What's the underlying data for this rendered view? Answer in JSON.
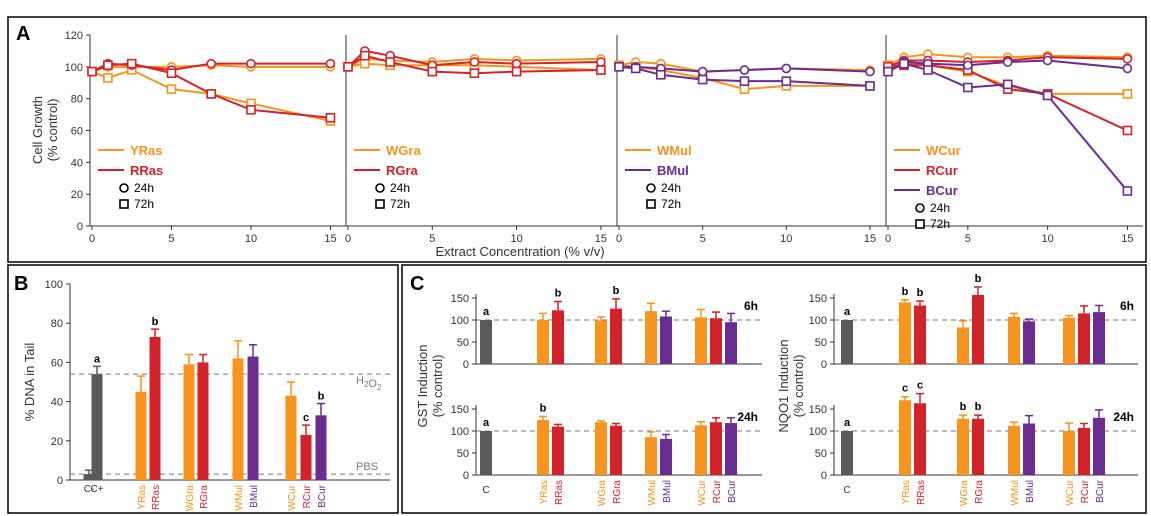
{
  "colors": {
    "orange": "#F7941D",
    "red": "#D2232A",
    "purple": "#6A2C91",
    "gray": "#5A5A5A",
    "axis": "#333333",
    "dash": "#777777"
  },
  "panel_labels": {
    "A": "A",
    "B": "B",
    "C": "C"
  },
  "chart_data": [
    {
      "id": "A",
      "type": "line",
      "ylabel": "Cell Growth\n(% control)",
      "xlabel": "Extract Concentration (% v/v)",
      "ylim": [
        0,
        120
      ],
      "xlim": [
        0,
        15.6
      ],
      "yticks": [
        0,
        20,
        40,
        60,
        80,
        100,
        120
      ],
      "xticks": [
        0,
        5,
        10,
        15
      ],
      "marker_legend": [
        {
          "marker": "circle",
          "label": "24h"
        },
        {
          "marker": "square",
          "label": "72h"
        }
      ],
      "subplots": [
        {
          "legend": [
            {
              "name": "YRas",
              "color": "orange"
            },
            {
              "name": "RRas",
              "color": "red"
            }
          ],
          "series": [
            {
              "name": "YRas",
              "color": "orange",
              "marker": "circle",
              "x": [
                0,
                1,
                2.5,
                5,
                7.5,
                10,
                15
              ],
              "y": [
                97,
                100,
                100,
                100,
                101,
                100,
                100
              ]
            },
            {
              "name": "YRas",
              "color": "orange",
              "marker": "square",
              "x": [
                0,
                1,
                2.5,
                5,
                7.5,
                10,
                15
              ],
              "y": [
                97,
                93,
                98,
                86,
                83,
                77,
                66
              ]
            },
            {
              "name": "RRas",
              "color": "red",
              "marker": "circle",
              "x": [
                0,
                1,
                2.5,
                5,
                7.5,
                10,
                15
              ],
              "y": [
                97,
                102,
                101,
                98,
                102,
                102,
                102
              ]
            },
            {
              "name": "RRas",
              "color": "red",
              "marker": "square",
              "x": [
                0,
                1,
                2.5,
                5,
                7.5,
                10,
                15
              ],
              "y": [
                97,
                101,
                102,
                96,
                83,
                73,
                68
              ]
            }
          ]
        },
        {
          "legend": [
            {
              "name": "WGra",
              "color": "orange"
            },
            {
              "name": "RGra",
              "color": "red"
            }
          ],
          "series": [
            {
              "name": "WGra",
              "color": "orange",
              "marker": "circle",
              "x": [
                0,
                1,
                2.5,
                5,
                7.5,
                10,
                15
              ],
              "y": [
                100,
                105,
                104,
                103,
                105,
                104,
                105
              ]
            },
            {
              "name": "WGra",
              "color": "orange",
              "marker": "square",
              "x": [
                0,
                1,
                2.5,
                5,
                7.5,
                10,
                15
              ],
              "y": [
                100,
                102,
                101,
                101,
                101,
                100,
                98
              ]
            },
            {
              "name": "RGra",
              "color": "red",
              "marker": "circle",
              "x": [
                0,
                1,
                2.5,
                5,
                7.5,
                10,
                15
              ],
              "y": [
                100,
                110,
                107,
                101,
                103,
                102,
                103
              ]
            },
            {
              "name": "RGra",
              "color": "red",
              "marker": "square",
              "x": [
                0,
                1,
                2.5,
                5,
                7.5,
                10,
                15
              ],
              "y": [
                100,
                107,
                103,
                97,
                96,
                97,
                98
              ]
            }
          ]
        },
        {
          "legend": [
            {
              "name": "WMul",
              "color": "orange"
            },
            {
              "name": "BMul",
              "color": "purple"
            }
          ],
          "series": [
            {
              "name": "WMul",
              "color": "orange",
              "marker": "circle",
              "x": [
                0,
                1,
                2.5,
                5,
                7.5,
                10,
                15
              ],
              "y": [
                101,
                103,
                102,
                97,
                98,
                99,
                98
              ]
            },
            {
              "name": "WMul",
              "color": "orange",
              "marker": "square",
              "x": [
                0,
                1,
                2.5,
                5,
                7.5,
                10,
                15
              ],
              "y": [
                101,
                100,
                98,
                93,
                86,
                88,
                88
              ]
            },
            {
              "name": "BMul",
              "color": "purple",
              "marker": "circle",
              "x": [
                0,
                1,
                2.5,
                5,
                7.5,
                10,
                15
              ],
              "y": [
                100,
                100,
                99,
                97,
                98,
                99,
                97
              ]
            },
            {
              "name": "BMul",
              "color": "purple",
              "marker": "square",
              "x": [
                0,
                1,
                2.5,
                5,
                7.5,
                10,
                15
              ],
              "y": [
                100,
                99,
                95,
                92,
                91,
                91,
                88
              ]
            }
          ]
        },
        {
          "legend": [
            {
              "name": "WCur",
              "color": "orange"
            },
            {
              "name": "RCur",
              "color": "red"
            },
            {
              "name": "BCur",
              "color": "purple"
            }
          ],
          "series": [
            {
              "name": "WCur",
              "color": "orange",
              "marker": "circle",
              "x": [
                0,
                1,
                2.5,
                5,
                7.5,
                10,
                15
              ],
              "y": [
                101,
                106,
                108,
                106,
                106,
                107,
                106
              ]
            },
            {
              "name": "WCur",
              "color": "orange",
              "marker": "square",
              "x": [
                0,
                1,
                2.5,
                5,
                7.5,
                10,
                15
              ],
              "y": [
                101,
                102,
                101,
                97,
                88,
                83,
                83
              ]
            },
            {
              "name": "RCur",
              "color": "red",
              "marker": "circle",
              "x": [
                0,
                1,
                2.5,
                5,
                7.5,
                10,
                15
              ],
              "y": [
                100,
                104,
                104,
                103,
                104,
                106,
                105
              ]
            },
            {
              "name": "RCur",
              "color": "red",
              "marker": "square",
              "x": [
                0,
                1,
                2.5,
                5,
                7.5,
                10,
                15
              ],
              "y": [
                100,
                101,
                101,
                98,
                86,
                83,
                60
              ]
            },
            {
              "name": "BCur",
              "color": "purple",
              "marker": "circle",
              "x": [
                0,
                1,
                2.5,
                5,
                7.5,
                10,
                15
              ],
              "y": [
                97,
                103,
                102,
                101,
                103,
                104,
                99
              ]
            },
            {
              "name": "BCur",
              "color": "purple",
              "marker": "square",
              "x": [
                0,
                1,
                2.5,
                5,
                7.5,
                10,
                15
              ],
              "y": [
                97,
                102,
                98,
                87,
                89,
                82,
                22
              ]
            }
          ]
        }
      ]
    },
    {
      "id": "B",
      "type": "bar",
      "ylabel": "% DNA in Tail",
      "ylim": [
        0,
        100
      ],
      "yticks": [
        0,
        20,
        40,
        60,
        80,
        100
      ],
      "reference_lines": [
        {
          "label": "H₂O₂",
          "value": 54
        },
        {
          "label": "PBS",
          "value": 3
        }
      ],
      "bars": [
        {
          "label": "C-",
          "value": 3,
          "error": 2,
          "color": "gray",
          "letter": ""
        },
        {
          "label": "C+",
          "value": 54,
          "error": 4,
          "color": "gray",
          "letter": "a"
        },
        {
          "label": "YRas",
          "value": 45,
          "error": 8,
          "color": "orange",
          "letter": ""
        },
        {
          "label": "RRas",
          "value": 73,
          "error": 4,
          "color": "red",
          "letter": "b"
        },
        {
          "label": "WGra",
          "value": 59,
          "error": 5,
          "color": "orange",
          "letter": ""
        },
        {
          "label": "RGra",
          "value": 60,
          "error": 4,
          "color": "red",
          "letter": ""
        },
        {
          "label": "WMul",
          "value": 62,
          "error": 9,
          "color": "orange",
          "letter": ""
        },
        {
          "label": "BMul",
          "value": 63,
          "error": 6,
          "color": "purple",
          "letter": ""
        },
        {
          "label": "WCur",
          "value": 43,
          "error": 7,
          "color": "orange",
          "letter": ""
        },
        {
          "label": "RCur",
          "value": 23,
          "error": 5,
          "color": "red",
          "letter": "c"
        },
        {
          "label": "BCur",
          "value": 33,
          "error": 6,
          "color": "purple",
          "letter": "b"
        }
      ]
    },
    {
      "id": "C-GST",
      "type": "bar",
      "ylabel": "GST Induction\n(% control)",
      "categories": [
        "C",
        "YRas",
        "RRas",
        "WGra",
        "RGra",
        "WMul",
        "BMul",
        "WCur",
        "RCur",
        "BCur"
      ],
      "colors": [
        "gray",
        "orange",
        "red",
        "orange",
        "red",
        "orange",
        "purple",
        "orange",
        "red",
        "purple"
      ],
      "panels": [
        {
          "time": "6h",
          "ylim": [
            0,
            150
          ],
          "yticks": [
            0,
            50,
            100,
            150
          ],
          "reference": 100,
          "values": [
            100,
            100,
            122,
            99,
            126,
            120,
            108,
            106,
            104,
            95
          ],
          "errors": [
            0,
            15,
            20,
            8,
            22,
            18,
            12,
            18,
            14,
            20
          ],
          "letters": [
            "a",
            "",
            "b",
            "",
            "b",
            "",
            "",
            "",
            "",
            ""
          ]
        },
        {
          "time": "24h",
          "ylim": [
            0,
            150
          ],
          "yticks": [
            0,
            50,
            100,
            150
          ],
          "reference": 100,
          "values": [
            100,
            125,
            110,
            120,
            112,
            86,
            82,
            113,
            120,
            118
          ],
          "errors": [
            0,
            8,
            5,
            3,
            5,
            12,
            10,
            8,
            10,
            12
          ],
          "letters": [
            "a",
            "b",
            "",
            "",
            "",
            "",
            "",
            "",
            "",
            ""
          ]
        }
      ]
    },
    {
      "id": "C-NQO1",
      "type": "bar",
      "ylabel": "NQO1 Induction\n(% control)",
      "categories": [
        "C",
        "YRas",
        "RRas",
        "WGra",
        "RGra",
        "WMul",
        "BMul",
        "WCur",
        "RCur",
        "BCur"
      ],
      "colors": [
        "gray",
        "orange",
        "red",
        "orange",
        "red",
        "orange",
        "purple",
        "orange",
        "red",
        "purple"
      ],
      "panels": [
        {
          "time": "6h",
          "ylim": [
            0,
            150
          ],
          "yticks": [
            0,
            50,
            100,
            150
          ],
          "reference": 100,
          "values": [
            100,
            140,
            133,
            83,
            157,
            107,
            97,
            105,
            115,
            118
          ],
          "errors": [
            0,
            6,
            10,
            15,
            18,
            8,
            5,
            5,
            17,
            15
          ],
          "letters": [
            "a",
            "b",
            "b",
            "",
            "b",
            "",
            "",
            "",
            "",
            ""
          ]
        },
        {
          "time": "24h",
          "ylim": [
            0,
            150
          ],
          "yticks": [
            0,
            50,
            100,
            150
          ],
          "reference": 100,
          "values": [
            100,
            170,
            163,
            128,
            128,
            112,
            117,
            100,
            107,
            130
          ],
          "errors": [
            0,
            8,
            22,
            8,
            8,
            8,
            18,
            18,
            10,
            18
          ],
          "letters": [
            "a",
            "c",
            "c",
            "b",
            "b",
            "",
            "",
            "",
            "",
            ""
          ]
        }
      ]
    }
  ]
}
